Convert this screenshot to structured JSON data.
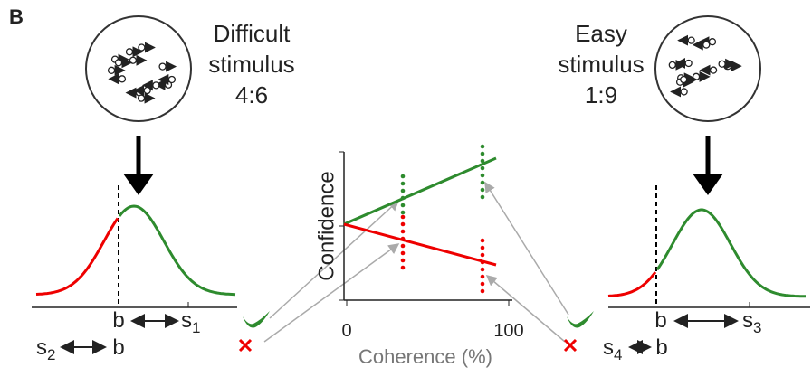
{
  "panel_label": "B",
  "difficult": {
    "lines": [
      "Difficult",
      "stimulus",
      "4:6"
    ],
    "b_top": "b",
    "s_top": {
      "base": "s",
      "sub": "1"
    },
    "s_bottom": {
      "base": "s",
      "sub": "2"
    },
    "b_bottom": "b"
  },
  "easy": {
    "lines": [
      "Easy",
      "stimulus",
      "1:9"
    ],
    "b_top": "b",
    "s_top": {
      "base": "s",
      "sub": "3"
    },
    "s_bottom": {
      "base": "s",
      "sub": "4"
    },
    "b_bottom": "b"
  },
  "center_chart": {
    "y_label": "Confidence",
    "x_label": "Coherence (%)",
    "xlim": [
      0,
      100
    ],
    "xticks": [
      0,
      100
    ]
  }
}
